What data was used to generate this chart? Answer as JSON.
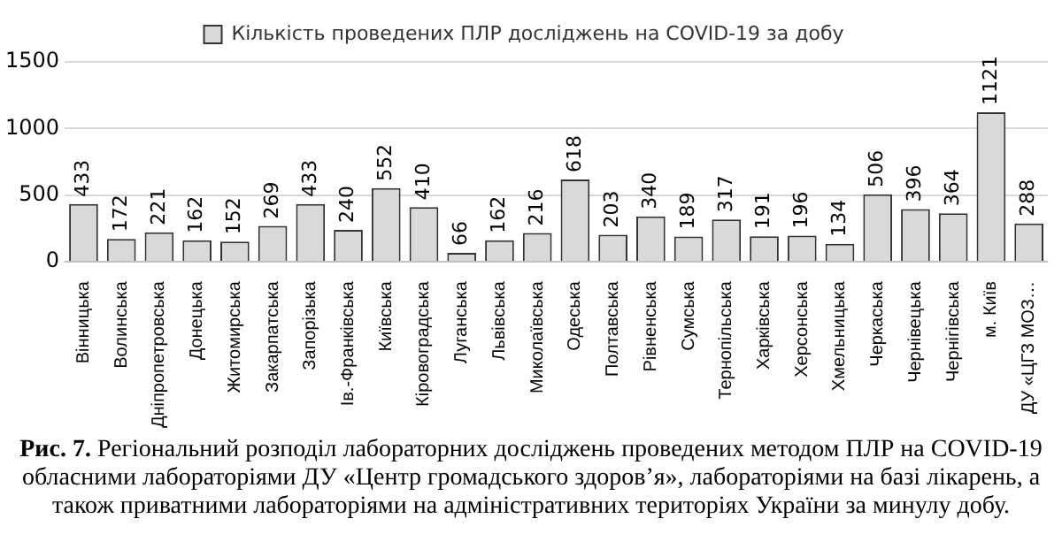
{
  "chart_data": {
    "type": "bar",
    "categories": [
      "Вінницька",
      "Волинська",
      "Дніпропетровська",
      "Донецька",
      "Житомирська",
      "Закарпатська",
      "Запорізька",
      "Ів.-Франківська",
      "Київська",
      "Кіровоградська",
      "Луганська",
      "Львівська",
      "Миколаївська",
      "Одеська",
      "Полтавська",
      "Рівненська",
      "Сумська",
      "Тернопільська",
      "Харківська",
      "Херсонська",
      "Хмельницька",
      "Черкаська",
      "Чернівецька",
      "Чернігівська",
      "м. Київ",
      "ДУ «ЦГЗ МОЗ…"
    ],
    "series": [
      {
        "name": "Кількість проведених ПЛР досліджень на COVID-19 за добу",
        "color": "#d9d9d9",
        "values": [
          433,
          172,
          221,
          162,
          152,
          269,
          433,
          240,
          552,
          410,
          66,
          162,
          216,
          618,
          203,
          340,
          189,
          317,
          191,
          196,
          134,
          506,
          396,
          364,
          1121,
          288
        ]
      }
    ],
    "ylim": [
      0,
      1500
    ],
    "yticks": [
      0,
      500,
      1000,
      1500
    ],
    "grid": "y",
    "legend": "top",
    "data_labels": true,
    "annotations": [
      "Рис. 7.",
      "Регіональний розподіл лабораторних досліджень проведених методом ПЛР на COVID-19 обласними лабораторіями ДУ «Центр громадського здоров’я», лабораторіями на базі лікарень, а також приватними лабораторіями на адміністративних територіях України за минулу добу."
    ]
  }
}
